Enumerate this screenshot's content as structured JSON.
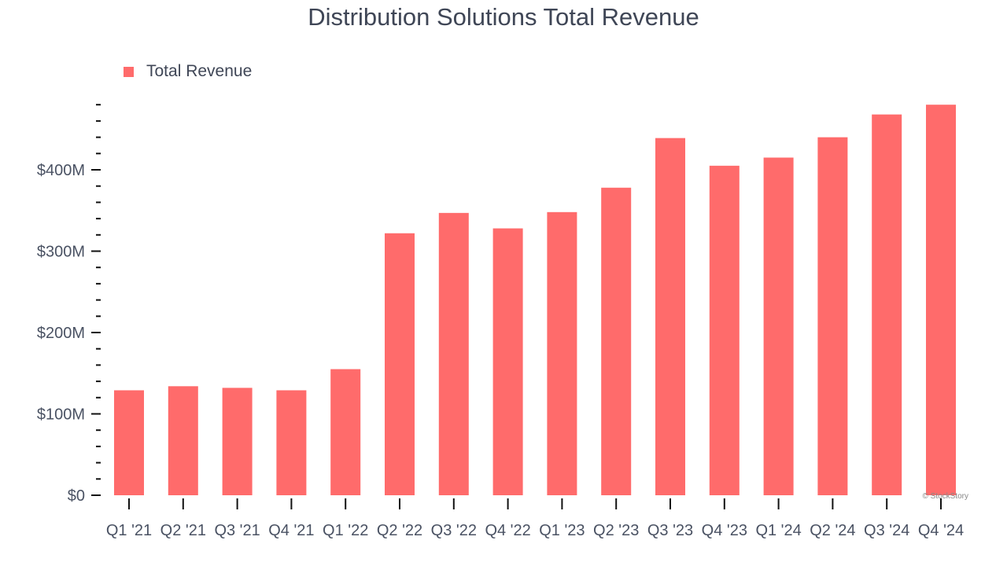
{
  "chart_data": {
    "type": "bar",
    "title": "Distribution Solutions Total Revenue",
    "categories": [
      "Q1 '21",
      "Q2 '21",
      "Q3 '21",
      "Q4 '21",
      "Q1 '22",
      "Q2 '22",
      "Q3 '22",
      "Q4 '22",
      "Q1 '23",
      "Q2 '23",
      "Q3 '23",
      "Q4 '23",
      "Q1 '24",
      "Q2 '24",
      "Q3 '24",
      "Q4 '24"
    ],
    "series": [
      {
        "name": "Total Revenue",
        "values": [
          129,
          134,
          132,
          129,
          155,
          322,
          347,
          328,
          348,
          378,
          439,
          405,
          415,
          440,
          468,
          480
        ],
        "color": "#ff6b6b"
      }
    ],
    "unit": "$M",
    "ylim": [
      0,
      480
    ],
    "yticks": [
      0,
      100,
      200,
      300,
      400
    ],
    "ytick_labels": [
      "$0",
      "$100M",
      "$200M",
      "$300M",
      "$400M"
    ],
    "grid": false,
    "legend": "top-left",
    "xlabel": "",
    "ylabel": ""
  },
  "watermark": "© StockStory"
}
